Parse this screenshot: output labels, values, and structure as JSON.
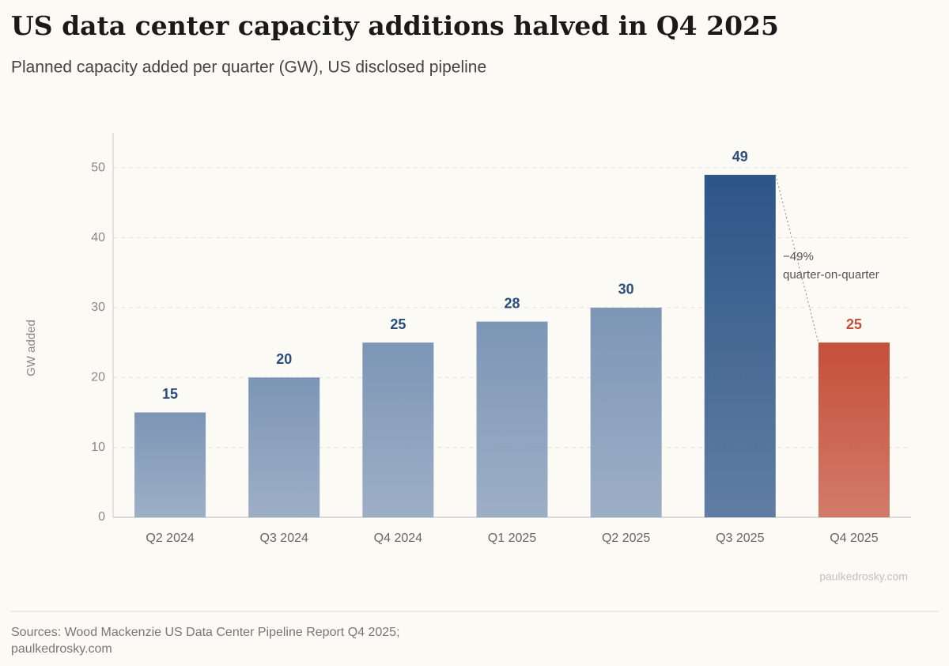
{
  "chart_data": {
    "type": "bar",
    "title": "US data center capacity additions halved in Q4 2025",
    "subtitle": "Planned capacity added per quarter (GW), US disclosed pipeline",
    "y_label": "GW added",
    "categories": [
      "Q2 2024",
      "Q3 2024",
      "Q4 2024",
      "Q1 2025",
      "Q2 2025",
      "Q3 2025",
      "Q4 2025"
    ],
    "values": [
      15,
      20,
      25,
      28,
      30,
      49,
      25
    ],
    "colors": [
      "#7d96b6",
      "#7d96b6",
      "#7d96b6",
      "#7d96b6",
      "#7d96b6",
      "#2d5587",
      "#c4503a"
    ],
    "label_colors": [
      "#2b4d7c",
      "#2b4d7c",
      "#2b4d7c",
      "#2b4d7c",
      "#2b4d7c",
      "#2b4d7c",
      "#c4503a"
    ],
    "ylim": [
      0,
      55
    ],
    "yticks": [
      0,
      10,
      20,
      30,
      40,
      50
    ],
    "grid": true,
    "annotations": [
      "−49%",
      "quarter-on-quarter"
    ],
    "watermark": "paulkedrosky.com",
    "source": [
      "Sources: Wood Mackenzie US Data Center Pipeline Report Q4 2025;",
      "paulkedrosky.com"
    ]
  }
}
